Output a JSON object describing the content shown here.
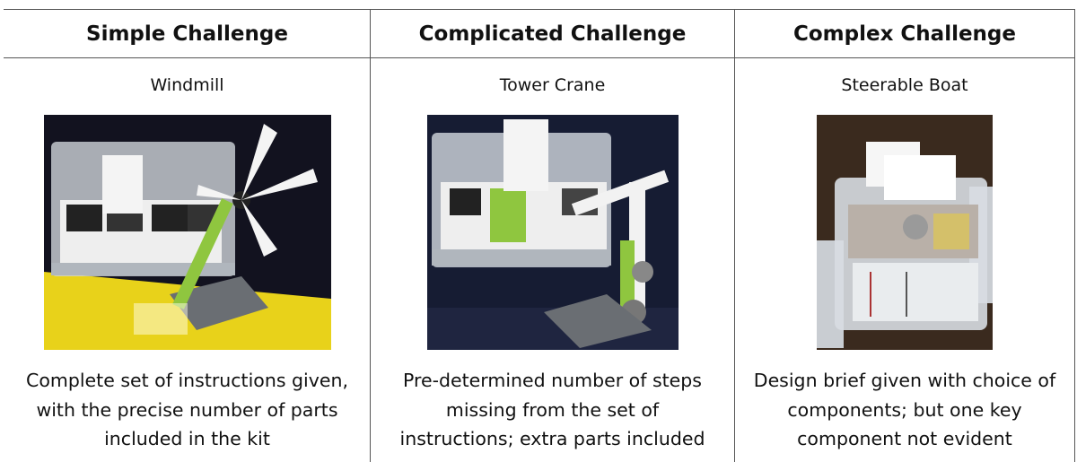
{
  "table": {
    "header": [
      "Simple Challenge",
      "Complicated Challenge",
      "Complex Challenge"
    ],
    "rows": [
      {
        "name": "Windmill",
        "description": [
          "Complete set of instructions given,",
          "with the precise number of parts",
          "included in the kit"
        ]
      },
      {
        "name": "Tower Crane",
        "description": [
          "Pre-determined number of steps",
          "missing from the set of",
          "instructions; extra parts included"
        ]
      },
      {
        "name": "Steerable Boat",
        "description": [
          "Design brief given with choice of",
          "components; but one key",
          "component not evident"
        ]
      }
    ]
  }
}
